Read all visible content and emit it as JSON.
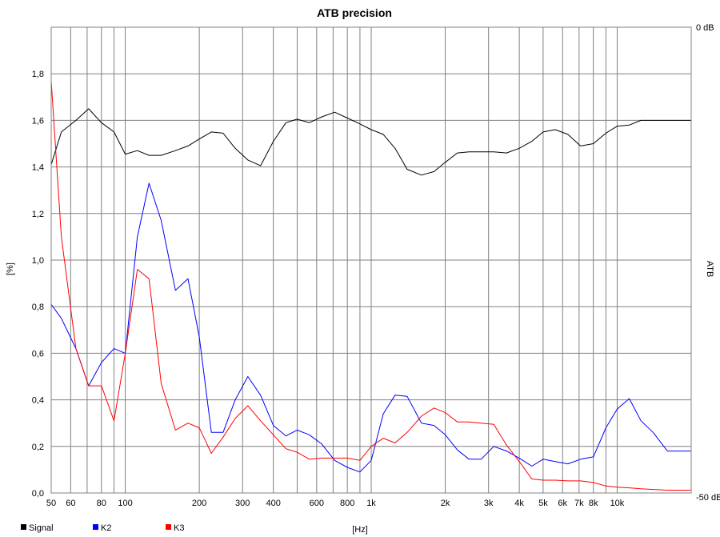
{
  "chart_data": {
    "type": "line",
    "title": "ATB precision",
    "xlabel": "[Hz]",
    "ylabel": "[%]",
    "y2label": "ATB",
    "x_scale": "log",
    "xlim": [
      50,
      20000
    ],
    "ylim": [
      0,
      2.0
    ],
    "y2lim": [
      -50,
      0
    ],
    "grid": true,
    "x_ticks": [
      50,
      60,
      80,
      100,
      200,
      300,
      400,
      600,
      800,
      1000,
      2000,
      3000,
      4000,
      5000,
      6000,
      7000,
      8000,
      10000
    ],
    "x_tick_labels": [
      "50",
      "60",
      "80",
      "100",
      "200",
      "300",
      "400",
      "600",
      "800",
      "1k",
      "2k",
      "3k",
      "4k",
      "5k",
      "6k",
      "7k",
      "8k",
      "10k"
    ],
    "y_ticks": [
      0.0,
      0.2,
      0.4,
      0.6,
      0.8,
      1.0,
      1.2,
      1.4,
      1.6,
      1.8
    ],
    "y_tick_labels": [
      "0,0",
      "0,2",
      "0,4",
      "0,6",
      "0,8",
      "1,0",
      "1,2",
      "1,4",
      "1,6",
      "1,8"
    ],
    "y2_tick_labels": [
      "0 dB",
      "-50 dB"
    ],
    "legend_position": "bottom-left",
    "series": [
      {
        "name": "Signal",
        "color": "#000000",
        "x": [
          50,
          55,
          63,
          71,
          80,
          90,
          100,
          112,
          125,
          140,
          160,
          180,
          200,
          224,
          250,
          280,
          315,
          355,
          400,
          450,
          500,
          560,
          630,
          710,
          800,
          900,
          1000,
          1120,
          1250,
          1400,
          1600,
          1800,
          2000,
          2240,
          2500,
          2800,
          3150,
          3550,
          4000,
          4500,
          5000,
          5600,
          6300,
          7100,
          8000,
          9000,
          10000,
          11200,
          12500,
          14000,
          16000,
          18000,
          20000
        ],
        "y": [
          1.41,
          1.55,
          1.6,
          1.65,
          1.59,
          1.55,
          1.455,
          1.47,
          1.45,
          1.45,
          1.47,
          1.49,
          1.52,
          1.55,
          1.545,
          1.48,
          1.43,
          1.405,
          1.51,
          1.59,
          1.605,
          1.59,
          1.615,
          1.635,
          1.61,
          1.585,
          1.56,
          1.54,
          1.48,
          1.39,
          1.365,
          1.38,
          1.42,
          1.46,
          1.465,
          1.465,
          1.465,
          1.46,
          1.48,
          1.51,
          1.55,
          1.56,
          1.54,
          1.49,
          1.5,
          1.545,
          1.575,
          1.58,
          1.6,
          1.6,
          1.6,
          1.6,
          1.6
        ]
      },
      {
        "name": "K2",
        "color": "#0000ff",
        "x": [
          50,
          55,
          63,
          71,
          80,
          90,
          100,
          112,
          125,
          140,
          160,
          180,
          200,
          224,
          250,
          280,
          315,
          355,
          400,
          450,
          500,
          560,
          630,
          710,
          800,
          900,
          1000,
          1120,
          1250,
          1400,
          1600,
          1800,
          2000,
          2240,
          2500,
          2800,
          3150,
          3550,
          4000,
          4500,
          5000,
          5600,
          6300,
          7100,
          8000,
          9000,
          10000,
          11200,
          12500,
          14000,
          16000,
          18000,
          20000
        ],
        "y": [
          0.81,
          0.75,
          0.62,
          0.46,
          0.56,
          0.62,
          0.6,
          1.1,
          1.33,
          1.17,
          0.87,
          0.92,
          0.67,
          0.26,
          0.26,
          0.4,
          0.5,
          0.42,
          0.29,
          0.245,
          0.27,
          0.25,
          0.21,
          0.14,
          0.11,
          0.09,
          0.14,
          0.34,
          0.42,
          0.415,
          0.3,
          0.29,
          0.25,
          0.185,
          0.145,
          0.145,
          0.2,
          0.18,
          0.15,
          0.115,
          0.145,
          0.135,
          0.125,
          0.145,
          0.155,
          0.28,
          0.36,
          0.405,
          0.31,
          0.26,
          0.18,
          0.18,
          0.18
        ]
      },
      {
        "name": "K3",
        "color": "#ff0000",
        "x": [
          50,
          55,
          63,
          71,
          80,
          90,
          100,
          112,
          125,
          140,
          160,
          180,
          200,
          224,
          250,
          280,
          315,
          355,
          400,
          450,
          500,
          560,
          630,
          710,
          800,
          900,
          1000,
          1120,
          1250,
          1400,
          1600,
          1800,
          2000,
          2240,
          2500,
          2800,
          3150,
          3550,
          4000,
          4500,
          5000,
          5600,
          6300,
          7100,
          8000,
          9000,
          10000,
          11200,
          12500,
          14000,
          16000,
          18000,
          20000
        ],
        "y": [
          1.77,
          1.1,
          0.62,
          0.46,
          0.46,
          0.31,
          0.6,
          0.96,
          0.92,
          0.47,
          0.27,
          0.3,
          0.28,
          0.17,
          0.24,
          0.32,
          0.375,
          0.31,
          0.25,
          0.19,
          0.175,
          0.145,
          0.15,
          0.15,
          0.15,
          0.14,
          0.2,
          0.235,
          0.215,
          0.26,
          0.33,
          0.365,
          0.345,
          0.305,
          0.305,
          0.3,
          0.295,
          0.205,
          0.135,
          0.06,
          0.055,
          0.055,
          0.052,
          0.052,
          0.045,
          0.03,
          0.025,
          0.022,
          0.018,
          0.015,
          0.012,
          0.012,
          0.012
        ]
      }
    ]
  }
}
